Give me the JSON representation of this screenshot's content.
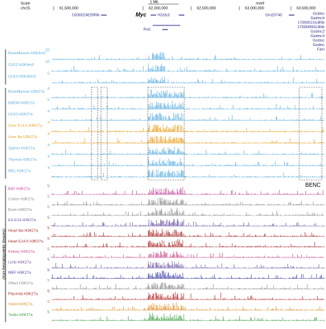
{
  "header": {
    "scale": "Scale",
    "chrom": "chr15",
    "size": "1 Mb",
    "assembly": "mm9",
    "coordinates": [
      "61,500,000",
      "62,000,000",
      "62,500,000",
      "63,000,000",
      "63,500,000"
    ]
  },
  "genes": [
    "D030024E09Rik",
    "Myc",
    "H2afy3",
    "Pvt1",
    "Gm20740"
  ],
  "right_genes": [
    "Gsdmc",
    "Gsdmc4",
    "1700001S14Rik",
    "1700005N13Rik",
    "Gsdmc2",
    "Gsdmc3",
    "Gsdmc",
    "Gsdmc",
    "Fam"
  ],
  "groups": [
    {
      "color": "#5aaee0",
      "tracks": [
        {
          "label": "BoneMarrow H3K4m3",
          "max": 10
        },
        {
          "label": "CH12 H3K4m3",
          "max": 10
        },
        {
          "label": "CH12 H3K36m3",
          "max": 5
        }
      ]
    },
    {
      "color": "#5aaee0",
      "tracks": [
        {
          "label": "BoneMarrow H3K27a",
          "max": 4
        },
        {
          "label": "BMDM H3K27a",
          "max": 5
        },
        {
          "label": "CH12 H3K27a",
          "max": 4
        },
        {
          "label": "Liver E14.5 H3K27a",
          "max": 4,
          "color": "#e8a020"
        },
        {
          "label": "Liver 8w H3K27a",
          "max": 4,
          "color": "#e8a020"
        },
        {
          "label": "Spleen H3K27a",
          "max": 4
        },
        {
          "label": "Thymus H3K27a",
          "max": 4
        },
        {
          "label": "MEL H3K27a",
          "max": 4
        }
      ]
    },
    {
      "color": "#888888",
      "tracks": [
        {
          "label": "BAT H3K27a",
          "max": 5,
          "color": "#c0449a"
        },
        {
          "label": "Cortex H3K27a",
          "max": 5
        },
        {
          "label": "Brain H3K27a",
          "max": 5
        },
        {
          "label": "ES-E14 H3K27a",
          "max": 5,
          "color": "#6a4ea0"
        },
        {
          "label": "Heart 8w H3K27a",
          "max": 5,
          "color": "#a82828"
        },
        {
          "label": "Heart E14.5 H3K27a",
          "max": 5,
          "color": "#a82828"
        },
        {
          "label": "Kidney H3K27a",
          "max": 5,
          "color": "#c84a8a"
        },
        {
          "label": "Limb H3K27a",
          "max": 5,
          "color": "#6a4ea0"
        },
        {
          "label": "MEF H3K27a",
          "max": 5,
          "color": "#3a3ea8"
        },
        {
          "label": "Olfact H3K27a",
          "max": 5
        },
        {
          "label": "Placenta H3K27a",
          "max": 5,
          "color": "#b02020"
        },
        {
          "label": "Smint H3K27a",
          "max": 5,
          "color": "#e08a20"
        },
        {
          "label": "Testis H3K27a",
          "max": 5,
          "color": "#3aa040"
        }
      ]
    }
  ],
  "box_label": "BENC",
  "side_label": "(non-hematopoietic tissues)"
}
